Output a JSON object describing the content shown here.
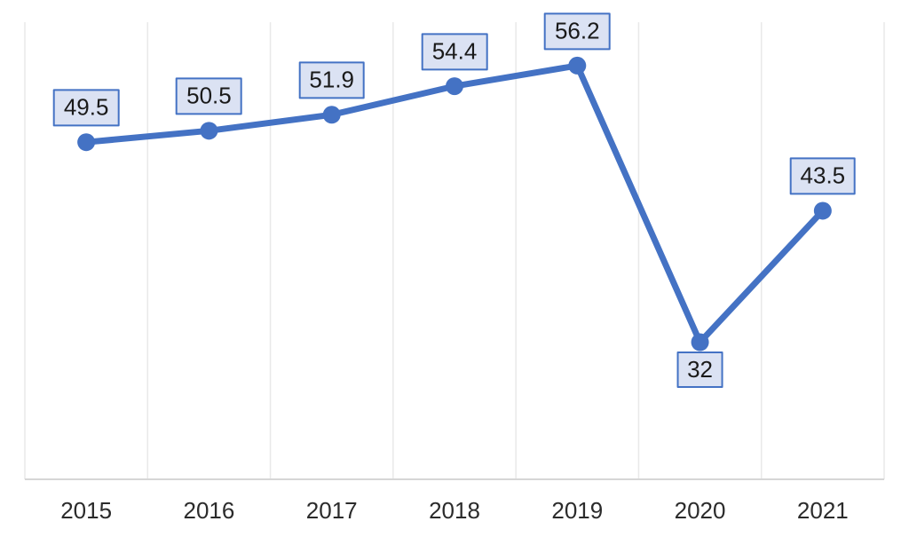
{
  "chart_data": {
    "type": "line",
    "categories": [
      "2015",
      "2016",
      "2017",
      "2018",
      "2019",
      "2020",
      "2021"
    ],
    "values": [
      49.5,
      50.5,
      51.9,
      54.4,
      56.2,
      32,
      43.5
    ],
    "point_labels": [
      "49.5",
      "50.5",
      "51.9",
      "54.4",
      "56.2",
      "32",
      "43.5"
    ],
    "point_label_position": [
      "above",
      "above",
      "above",
      "above",
      "above",
      "below",
      "above"
    ],
    "title": "",
    "xlabel": "",
    "ylabel": "",
    "ylim": [
      20,
      60
    ],
    "legend": "none",
    "grid": "vertical-category-separators",
    "colors": {
      "line": "#4472c4",
      "marker": "#4472c4",
      "label_box_fill": "#dbe2f3",
      "label_box_border": "#4472c4",
      "label_text": "#1a1a1a",
      "gridline": "#e9e9e9",
      "axis_line": "#d6d6d6",
      "tick_text": "#2b2b2b",
      "background": "#ffffff"
    }
  }
}
